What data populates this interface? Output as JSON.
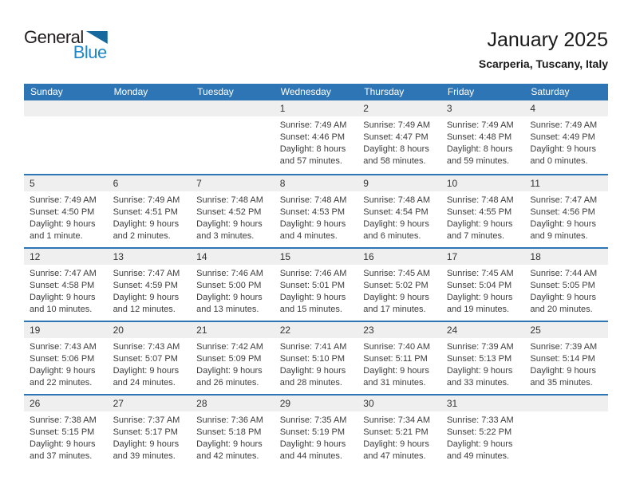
{
  "logo": {
    "general": "General",
    "blue": "Blue"
  },
  "header": {
    "title": "January 2025",
    "location": "Scarperia, Tuscany, Italy"
  },
  "colors": {
    "header_blue": "#2e75b5",
    "separator_blue": "#2e75b5",
    "band_gray": "#efefef",
    "logo_text_blue": "#1e87c9",
    "logo_triangle_blue": "#16699f",
    "weekday_text": "#ffffff",
    "body_text": "#3d3d3d"
  },
  "calendar": {
    "weekdays": [
      "Sunday",
      "Monday",
      "Tuesday",
      "Wednesday",
      "Thursday",
      "Friday",
      "Saturday"
    ],
    "weeks": [
      [
        null,
        null,
        null,
        {
          "day": "1",
          "lines": [
            "Sunrise: 7:49 AM",
            "Sunset: 4:46 PM",
            "Daylight: 8 hours",
            "and 57 minutes."
          ]
        },
        {
          "day": "2",
          "lines": [
            "Sunrise: 7:49 AM",
            "Sunset: 4:47 PM",
            "Daylight: 8 hours",
            "and 58 minutes."
          ]
        },
        {
          "day": "3",
          "lines": [
            "Sunrise: 7:49 AM",
            "Sunset: 4:48 PM",
            "Daylight: 8 hours",
            "and 59 minutes."
          ]
        },
        {
          "day": "4",
          "lines": [
            "Sunrise: 7:49 AM",
            "Sunset: 4:49 PM",
            "Daylight: 9 hours",
            "and 0 minutes."
          ]
        }
      ],
      [
        {
          "day": "5",
          "lines": [
            "Sunrise: 7:49 AM",
            "Sunset: 4:50 PM",
            "Daylight: 9 hours",
            "and 1 minute."
          ]
        },
        {
          "day": "6",
          "lines": [
            "Sunrise: 7:49 AM",
            "Sunset: 4:51 PM",
            "Daylight: 9 hours",
            "and 2 minutes."
          ]
        },
        {
          "day": "7",
          "lines": [
            "Sunrise: 7:48 AM",
            "Sunset: 4:52 PM",
            "Daylight: 9 hours",
            "and 3 minutes."
          ]
        },
        {
          "day": "8",
          "lines": [
            "Sunrise: 7:48 AM",
            "Sunset: 4:53 PM",
            "Daylight: 9 hours",
            "and 4 minutes."
          ]
        },
        {
          "day": "9",
          "lines": [
            "Sunrise: 7:48 AM",
            "Sunset: 4:54 PM",
            "Daylight: 9 hours",
            "and 6 minutes."
          ]
        },
        {
          "day": "10",
          "lines": [
            "Sunrise: 7:48 AM",
            "Sunset: 4:55 PM",
            "Daylight: 9 hours",
            "and 7 minutes."
          ]
        },
        {
          "day": "11",
          "lines": [
            "Sunrise: 7:47 AM",
            "Sunset: 4:56 PM",
            "Daylight: 9 hours",
            "and 9 minutes."
          ]
        }
      ],
      [
        {
          "day": "12",
          "lines": [
            "Sunrise: 7:47 AM",
            "Sunset: 4:58 PM",
            "Daylight: 9 hours",
            "and 10 minutes."
          ]
        },
        {
          "day": "13",
          "lines": [
            "Sunrise: 7:47 AM",
            "Sunset: 4:59 PM",
            "Daylight: 9 hours",
            "and 12 minutes."
          ]
        },
        {
          "day": "14",
          "lines": [
            "Sunrise: 7:46 AM",
            "Sunset: 5:00 PM",
            "Daylight: 9 hours",
            "and 13 minutes."
          ]
        },
        {
          "day": "15",
          "lines": [
            "Sunrise: 7:46 AM",
            "Sunset: 5:01 PM",
            "Daylight: 9 hours",
            "and 15 minutes."
          ]
        },
        {
          "day": "16",
          "lines": [
            "Sunrise: 7:45 AM",
            "Sunset: 5:02 PM",
            "Daylight: 9 hours",
            "and 17 minutes."
          ]
        },
        {
          "day": "17",
          "lines": [
            "Sunrise: 7:45 AM",
            "Sunset: 5:04 PM",
            "Daylight: 9 hours",
            "and 19 minutes."
          ]
        },
        {
          "day": "18",
          "lines": [
            "Sunrise: 7:44 AM",
            "Sunset: 5:05 PM",
            "Daylight: 9 hours",
            "and 20 minutes."
          ]
        }
      ],
      [
        {
          "day": "19",
          "lines": [
            "Sunrise: 7:43 AM",
            "Sunset: 5:06 PM",
            "Daylight: 9 hours",
            "and 22 minutes."
          ]
        },
        {
          "day": "20",
          "lines": [
            "Sunrise: 7:43 AM",
            "Sunset: 5:07 PM",
            "Daylight: 9 hours",
            "and 24 minutes."
          ]
        },
        {
          "day": "21",
          "lines": [
            "Sunrise: 7:42 AM",
            "Sunset: 5:09 PM",
            "Daylight: 9 hours",
            "and 26 minutes."
          ]
        },
        {
          "day": "22",
          "lines": [
            "Sunrise: 7:41 AM",
            "Sunset: 5:10 PM",
            "Daylight: 9 hours",
            "and 28 minutes."
          ]
        },
        {
          "day": "23",
          "lines": [
            "Sunrise: 7:40 AM",
            "Sunset: 5:11 PM",
            "Daylight: 9 hours",
            "and 31 minutes."
          ]
        },
        {
          "day": "24",
          "lines": [
            "Sunrise: 7:39 AM",
            "Sunset: 5:13 PM",
            "Daylight: 9 hours",
            "and 33 minutes."
          ]
        },
        {
          "day": "25",
          "lines": [
            "Sunrise: 7:39 AM",
            "Sunset: 5:14 PM",
            "Daylight: 9 hours",
            "and 35 minutes."
          ]
        }
      ],
      [
        {
          "day": "26",
          "lines": [
            "Sunrise: 7:38 AM",
            "Sunset: 5:15 PM",
            "Daylight: 9 hours",
            "and 37 minutes."
          ]
        },
        {
          "day": "27",
          "lines": [
            "Sunrise: 7:37 AM",
            "Sunset: 5:17 PM",
            "Daylight: 9 hours",
            "and 39 minutes."
          ]
        },
        {
          "day": "28",
          "lines": [
            "Sunrise: 7:36 AM",
            "Sunset: 5:18 PM",
            "Daylight: 9 hours",
            "and 42 minutes."
          ]
        },
        {
          "day": "29",
          "lines": [
            "Sunrise: 7:35 AM",
            "Sunset: 5:19 PM",
            "Daylight: 9 hours",
            "and 44 minutes."
          ]
        },
        {
          "day": "30",
          "lines": [
            "Sunrise: 7:34 AM",
            "Sunset: 5:21 PM",
            "Daylight: 9 hours",
            "and 47 minutes."
          ]
        },
        {
          "day": "31",
          "lines": [
            "Sunrise: 7:33 AM",
            "Sunset: 5:22 PM",
            "Daylight: 9 hours",
            "and 49 minutes."
          ]
        },
        null
      ]
    ]
  }
}
